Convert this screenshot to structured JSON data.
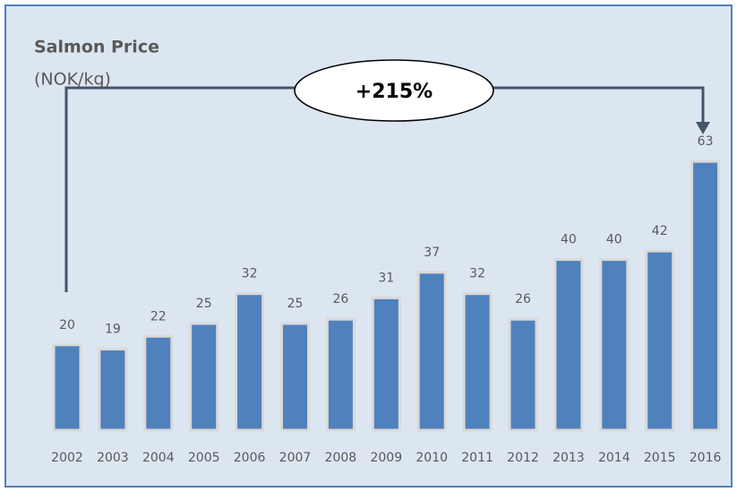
{
  "chart_data": {
    "type": "bar",
    "title": "Salmon Price",
    "subtitle": "(NOK/kg)",
    "annotation": "+215%",
    "categories": [
      "2002",
      "2003",
      "2004",
      "2005",
      "2006",
      "2007",
      "2008",
      "2009",
      "2010",
      "2011",
      "2012",
      "2013",
      "2014",
      "2015",
      "2016"
    ],
    "values": [
      20,
      19,
      22,
      25,
      32,
      25,
      26,
      31,
      37,
      32,
      26,
      40,
      40,
      42,
      63
    ],
    "color": "#4f81bd"
  }
}
